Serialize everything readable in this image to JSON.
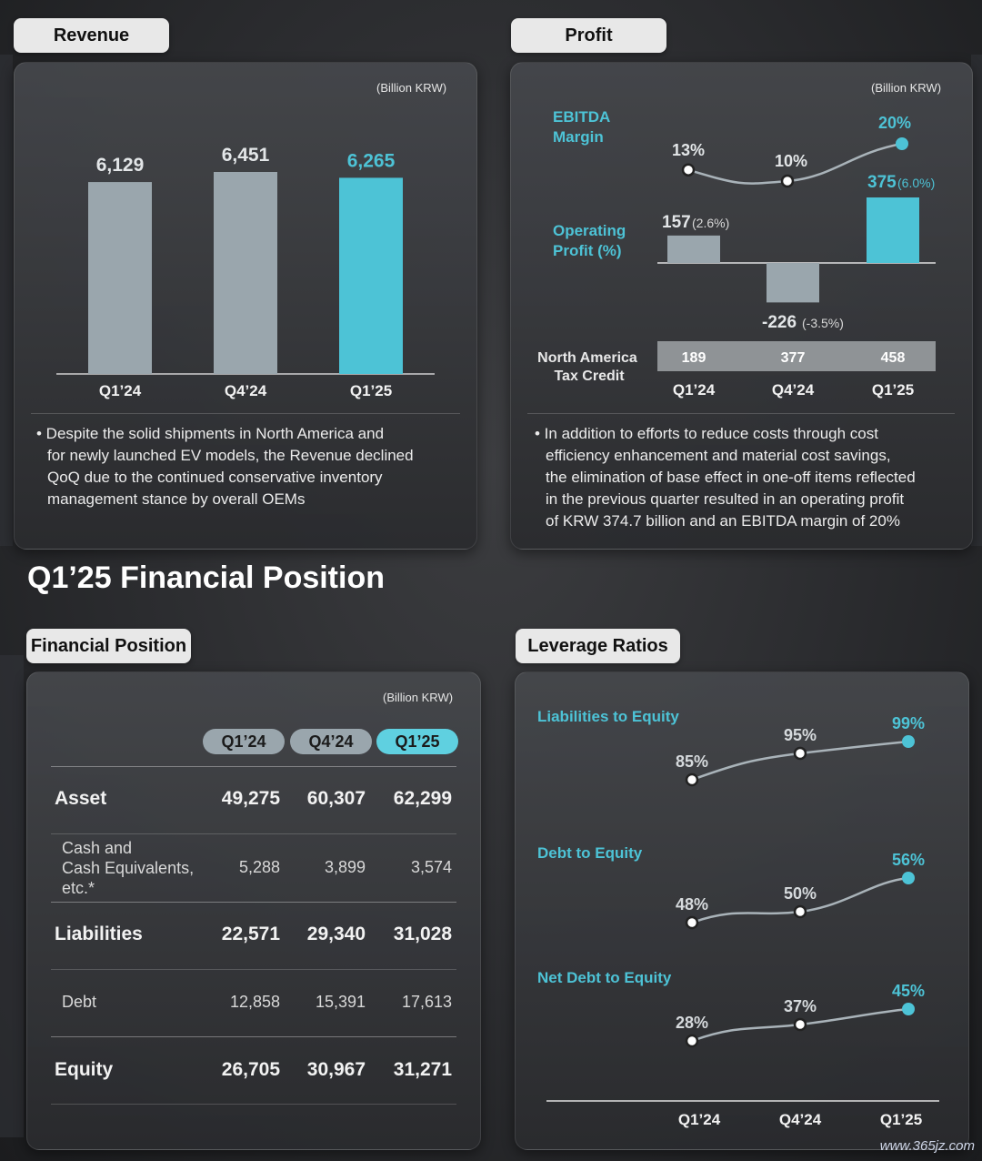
{
  "revenue": {
    "tab": "Revenue",
    "unit": "(Billion KRW)",
    "bullet": [
      "• Despite the solid shipments in North America and",
      "for newly launched EV models, the Revenue declined",
      "QoQ due to the continued conservative inventory",
      "management stance by overall OEMs"
    ]
  },
  "profit": {
    "tab": "Profit",
    "unit": "(Billion KRW)",
    "ebitda_label": [
      "EBITDA",
      "Margin"
    ],
    "op_label": [
      "Operating",
      "Profit (%)"
    ],
    "tax_label": [
      "North America",
      "Tax Credit"
    ],
    "bullet": [
      "• In addition to efforts to reduce costs through cost",
      "efficiency enhancement and material cost savings,",
      "the elimination of base effect in one-off items reflected",
      "in the previous quarter resulted in an operating profit",
      "of KRW 374.7 billion and an EBITDA margin of 20%"
    ]
  },
  "section_title": "Q1’25 Financial Position",
  "financial_position": {
    "tab": "Financial Position",
    "unit": "(Billion KRW)",
    "headers": [
      "Q1’24",
      "Q4’24",
      "Q1’25"
    ],
    "rows": [
      {
        "label": [
          "Asset"
        ],
        "values": [
          "49,275",
          "60,307",
          "62,299"
        ],
        "bold": true
      },
      {
        "label": [
          "Cash and",
          "Cash Equivalents,",
          "etc.*"
        ],
        "values": [
          "5,288",
          "3,899",
          "3,574"
        ],
        "bold": false
      },
      {
        "label": [
          "Liabilities"
        ],
        "values": [
          "22,571",
          "29,340",
          "31,028"
        ],
        "bold": true
      },
      {
        "label": [
          "Debt"
        ],
        "values": [
          "12,858",
          "15,391",
          "17,613"
        ],
        "bold": false
      },
      {
        "label": [
          "Equity"
        ],
        "values": [
          "26,705",
          "30,967",
          "31,271"
        ],
        "bold": true
      }
    ]
  },
  "leverage": {
    "tab": "Leverage Ratios"
  },
  "colors": {
    "accent": "#4dc3d6",
    "bar_gray": "#9aa6ad",
    "line_gray": "#a9b3b9"
  },
  "watermark": "www.365jz.com",
  "chart_data": [
    {
      "type": "bar",
      "categories": [
        "Q1’24",
        "Q4’24",
        "Q1’25"
      ],
      "values": [
        6129,
        6451,
        6265
      ],
      "value_labels": [
        "6,129",
        "6,451",
        "6,265"
      ],
      "highlight_index": 2
    },
    {
      "type": "line",
      "title": "EBITDA Margin",
      "categories": [
        "Q1’24",
        "Q4’24",
        "Q1’25"
      ],
      "values": [
        13,
        10,
        20
      ],
      "value_labels": [
        "13%",
        "10%",
        "20%"
      ]
    },
    {
      "type": "bar",
      "title": "Operating Profit (%)",
      "categories": [
        "Q1’24",
        "Q4’24",
        "Q1’25"
      ],
      "values": [
        157,
        -226,
        375
      ],
      "value_labels": [
        "157",
        "-226",
        "375"
      ],
      "pct_labels": [
        "(2.6%)",
        "(-3.5%)",
        "(6.0%)"
      ]
    },
    {
      "type": "table",
      "title": "North America Tax Credit",
      "categories": [
        "Q1’24",
        "Q4’24",
        "Q1’25"
      ],
      "values": [
        189,
        377,
        458
      ]
    },
    {
      "type": "line",
      "categories": [
        "Q1’24",
        "Q4’24",
        "Q1’25"
      ],
      "series": [
        {
          "name": "Liabilities to Equity",
          "values": [
            85,
            95,
            99
          ],
          "labels": [
            "85%",
            "95%",
            "99%"
          ]
        },
        {
          "name": "Debt to Equity",
          "values": [
            48,
            50,
            56
          ],
          "labels": [
            "48%",
            "50%",
            "56%"
          ]
        },
        {
          "name": "Net Debt to Equity",
          "values": [
            28,
            37,
            45
          ],
          "labels": [
            "28%",
            "37%",
            "45%"
          ]
        }
      ]
    }
  ]
}
